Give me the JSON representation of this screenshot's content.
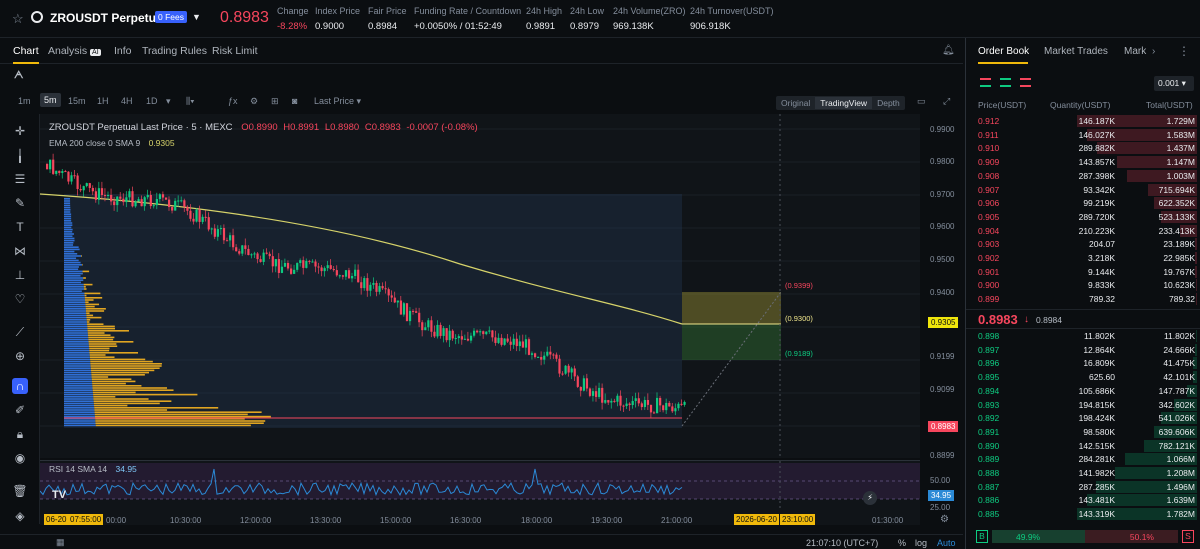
{
  "header": {
    "symbol": "ZROUSDT Perpetual",
    "fees_badge": "0 Fees",
    "last_price": "0.8983",
    "stats": [
      {
        "label": "Change",
        "value": "-8.28%"
      },
      {
        "label": "Index Price",
        "value": "0.9000"
      },
      {
        "label": "Fair Price",
        "value": "0.8984"
      },
      {
        "label": "Funding Rate / Countdown",
        "value": "+0.0050% / 01:52:49"
      },
      {
        "label": "24h High",
        "value": "0.9891"
      },
      {
        "label": "24h Low",
        "value": "0.8979"
      },
      {
        "label": "24h Volume(ZRO)",
        "value": "969.138K"
      },
      {
        "label": "24h Turnover(USDT)",
        "value": "906.918K"
      }
    ]
  },
  "tabs": [
    "Chart",
    "Analysis",
    "Info",
    "Trading Rules",
    "Risk Limit"
  ],
  "analysis_badge": "AI",
  "timeframes": [
    "1m",
    "5m",
    "15m",
    "1H",
    "4H",
    "1D"
  ],
  "price_mode": "Last Price",
  "view_modes": [
    "Original",
    "TradingView",
    "Depth"
  ],
  "legend": {
    "title": "ZROUSDT Perpetual Last Price · 5 · MEXC",
    "o": "O0.8990",
    "h": "H0.8991",
    "l": "L0.8980",
    "c": "C0.8983",
    "chg": "-0.0007 (-0.08%)",
    "ema_label": "EMA 200 close 0 SMA 9",
    "ema_value": "0.9305"
  },
  "price_axis": [
    "0.9900",
    "0.9800",
    "0.9700",
    "0.9600",
    "0.9500",
    "0.9400",
    "0.9199",
    "0.9099",
    "0.8899"
  ],
  "price_tags": {
    "ema": "0.9305",
    "last": "0.8983",
    "rsi": "34.95"
  },
  "annotations": {
    "upper": "(0.9399)",
    "mid": "(0.9300)",
    "lower": "(0.9189)"
  },
  "rsi": {
    "label": "RSI 14 SMA 14",
    "value": "34.95",
    "axis": [
      "50.00",
      "25.00"
    ]
  },
  "time_axis": [
    "06-20",
    "07:55:00",
    "00:00",
    "10:30:00",
    "12:00:00",
    "13:30:00",
    "15:00:00",
    "16:30:00",
    "18:00:00",
    "19:30:00",
    "21:00:00",
    "2026-06-20",
    "23:10:00",
    "01:30:00"
  ],
  "footer": {
    "clock": "21:07:10 (UTC+7)",
    "pct": "%",
    "log": "log",
    "auto": "Auto"
  },
  "orderbook": {
    "tabs": [
      "Order Book",
      "Market Trades",
      "Mark"
    ],
    "precision": "0.001",
    "columns": [
      "Price(USDT)",
      "Quantity(USDT)",
      "Total(USDT)"
    ],
    "asks": [
      {
        "p": "0.912",
        "q": "146.187K",
        "t": "1.729M",
        "w": 1.0
      },
      {
        "p": "0.911",
        "q": "146.027K",
        "t": "1.583M",
        "w": 0.92
      },
      {
        "p": "0.910",
        "q": "289.882K",
        "t": "1.437M",
        "w": 0.83
      },
      {
        "p": "0.909",
        "q": "143.857K",
        "t": "1.147M",
        "w": 0.67
      },
      {
        "p": "0.908",
        "q": "287.398K",
        "t": "1.003M",
        "w": 0.58
      },
      {
        "p": "0.907",
        "q": "93.342K",
        "t": "715.694K",
        "w": 0.41
      },
      {
        "p": "0.906",
        "q": "99.219K",
        "t": "622.352K",
        "w": 0.36
      },
      {
        "p": "0.905",
        "q": "289.720K",
        "t": "523.133K",
        "w": 0.3
      },
      {
        "p": "0.904",
        "q": "210.223K",
        "t": "233.413K",
        "w": 0.14
      },
      {
        "p": "0.903",
        "q": "204.07",
        "t": "23.189K",
        "w": 0.02
      },
      {
        "p": "0.902",
        "q": "3.218K",
        "t": "22.985K",
        "w": 0.02
      },
      {
        "p": "0.901",
        "q": "9.144K",
        "t": "19.767K",
        "w": 0.02
      },
      {
        "p": "0.900",
        "q": "9.833K",
        "t": "10.623K",
        "w": 0.01
      },
      {
        "p": "0.899",
        "q": "789.32",
        "t": "789.32",
        "w": 0.005
      }
    ],
    "mid_price": "0.8983",
    "mid_arrow": "↓",
    "mid_ref": "0.8984",
    "bids": [
      {
        "p": "0.898",
        "q": "11.802K",
        "t": "11.802K",
        "w": 0.01
      },
      {
        "p": "0.897",
        "q": "12.864K",
        "t": "24.666K",
        "w": 0.02
      },
      {
        "p": "0.896",
        "q": "16.809K",
        "t": "41.475K",
        "w": 0.03
      },
      {
        "p": "0.895",
        "q": "625.60",
        "t": "42.101K",
        "w": 0.03
      },
      {
        "p": "0.894",
        "q": "105.686K",
        "t": "147.787K",
        "w": 0.08
      },
      {
        "p": "0.893",
        "q": "194.815K",
        "t": "342.602K",
        "w": 0.19
      },
      {
        "p": "0.892",
        "q": "198.424K",
        "t": "541.026K",
        "w": 0.3
      },
      {
        "p": "0.891",
        "q": "98.580K",
        "t": "639.606K",
        "w": 0.36
      },
      {
        "p": "0.890",
        "q": "142.515K",
        "t": "782.121K",
        "w": 0.44
      },
      {
        "p": "0.889",
        "q": "284.281K",
        "t": "1.066M",
        "w": 0.6
      },
      {
        "p": "0.888",
        "q": "141.982K",
        "t": "1.208M",
        "w": 0.68
      },
      {
        "p": "0.887",
        "q": "287.285K",
        "t": "1.496M",
        "w": 0.84
      },
      {
        "p": "0.886",
        "q": "143.481K",
        "t": "1.639M",
        "w": 0.92
      },
      {
        "p": "0.885",
        "q": "143.319K",
        "t": "1.782M",
        "w": 1.0
      }
    ],
    "ratio": {
      "b_label": "B",
      "b_pct": "49.9%",
      "s_pct": "50.1%",
      "s_label": "S",
      "b_fraction": 0.499
    }
  },
  "colors": {
    "up": "#0ecb81",
    "down": "#f6465d",
    "accent": "#f0b90b",
    "ema": "#d6d36a"
  }
}
